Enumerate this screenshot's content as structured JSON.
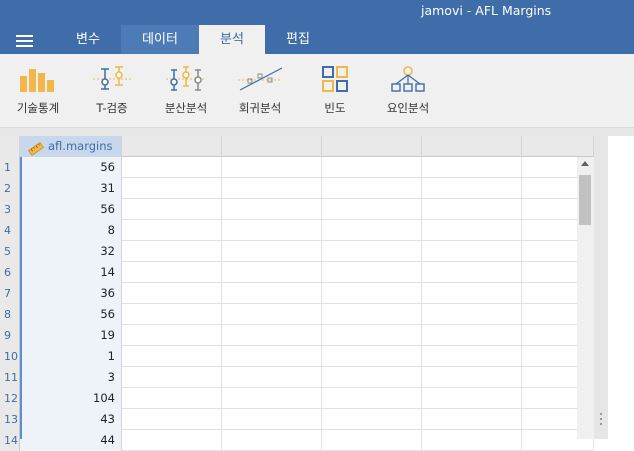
{
  "window": {
    "title": "jamovi - AFL Margins"
  },
  "tabs": [
    {
      "label": "변수"
    },
    {
      "label": "데이터"
    },
    {
      "label": "분석"
    },
    {
      "label": "편집"
    }
  ],
  "ribbon": [
    {
      "label": "기술통계",
      "icon": "descriptives-bar-icon"
    },
    {
      "label": "T-검증",
      "icon": "ttest-icon"
    },
    {
      "label": "분산분석",
      "icon": "anova-icon"
    },
    {
      "label": "회귀분석",
      "icon": "regression-icon"
    },
    {
      "label": "빈도",
      "icon": "frequencies-icon"
    },
    {
      "label": "요인분석",
      "icon": "factor-icon"
    }
  ],
  "sheet": {
    "column": {
      "name": "afl.margins",
      "icon": "continuous-ruler-icon"
    },
    "rows": [
      {
        "n": "1",
        "v": "56"
      },
      {
        "n": "2",
        "v": "31"
      },
      {
        "n": "3",
        "v": "56"
      },
      {
        "n": "4",
        "v": "8"
      },
      {
        "n": "5",
        "v": "32"
      },
      {
        "n": "6",
        "v": "14"
      },
      {
        "n": "7",
        "v": "36"
      },
      {
        "n": "8",
        "v": "56"
      },
      {
        "n": "9",
        "v": "19"
      },
      {
        "n": "10",
        "v": "1"
      },
      {
        "n": "11",
        "v": "3"
      },
      {
        "n": "12",
        "v": "104"
      },
      {
        "n": "13",
        "v": "43"
      },
      {
        "n": "14",
        "v": "44"
      }
    ]
  },
  "colors": {
    "brand": "#3e6da9",
    "ribbon_bg": "#f0f0f0",
    "icon_orange": "#f3b64a",
    "icon_blue": "#3e6da9"
  }
}
